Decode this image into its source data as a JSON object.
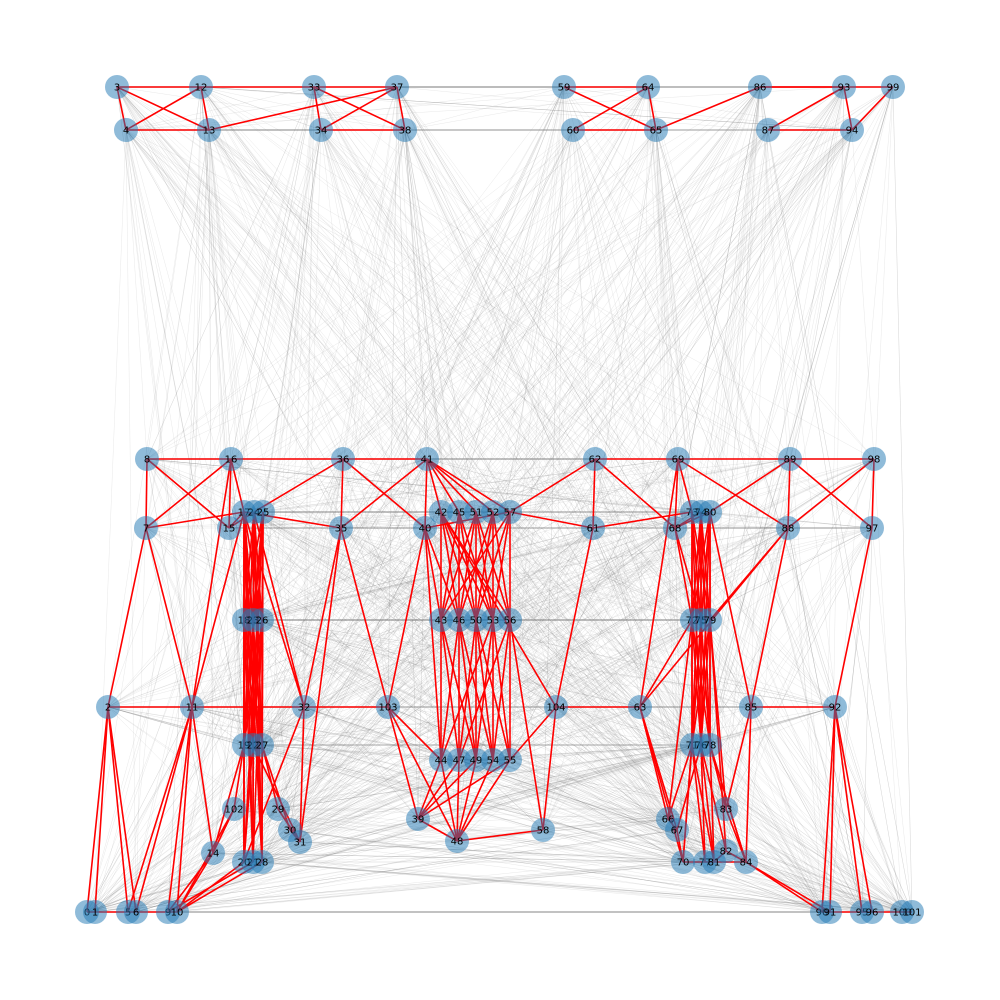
{
  "graph": {
    "node_color": "#1f77b4",
    "red_edge_color": "#ff0000",
    "gray_edge_color": "#808080",
    "nodes": [
      {
        "id": "0",
        "label": "0"
      },
      {
        "id": "1",
        "label": "1"
      },
      {
        "id": "2",
        "label": "2"
      },
      {
        "id": "3",
        "label": "3"
      },
      {
        "id": "4",
        "label": "4"
      },
      {
        "id": "5",
        "label": "5"
      },
      {
        "id": "6",
        "label": "6"
      },
      {
        "id": "7",
        "label": "7"
      },
      {
        "id": "8",
        "label": "8"
      },
      {
        "id": "9",
        "label": "9"
      },
      {
        "id": "10",
        "label": "10"
      },
      {
        "id": "11",
        "label": "11"
      },
      {
        "id": "12",
        "label": "12"
      },
      {
        "id": "13",
        "label": "13"
      },
      {
        "id": "14",
        "label": "14"
      },
      {
        "id": "15",
        "label": "15"
      },
      {
        "id": "16",
        "label": "16"
      },
      {
        "id": "17",
        "label": "17"
      },
      {
        "id": "18",
        "label": "18"
      },
      {
        "id": "19",
        "label": "19"
      },
      {
        "id": "20",
        "label": "20"
      },
      {
        "id": "21",
        "label": "21"
      },
      {
        "id": "22",
        "label": "22"
      },
      {
        "id": "23",
        "label": "23"
      },
      {
        "id": "24",
        "label": "24"
      },
      {
        "id": "25",
        "label": "25"
      },
      {
        "id": "26",
        "label": "26"
      },
      {
        "id": "27",
        "label": "27"
      },
      {
        "id": "28",
        "label": "28"
      },
      {
        "id": "29",
        "label": "29"
      },
      {
        "id": "30",
        "label": "30"
      },
      {
        "id": "31",
        "label": "31"
      },
      {
        "id": "32",
        "label": "32"
      },
      {
        "id": "33",
        "label": "33"
      },
      {
        "id": "34",
        "label": "34"
      },
      {
        "id": "35",
        "label": "35"
      },
      {
        "id": "36",
        "label": "36"
      },
      {
        "id": "37",
        "label": "37"
      },
      {
        "id": "38",
        "label": "38"
      },
      {
        "id": "39",
        "label": "39"
      },
      {
        "id": "40",
        "label": "40"
      },
      {
        "id": "41",
        "label": "41"
      },
      {
        "id": "42",
        "label": "42"
      },
      {
        "id": "43",
        "label": "43"
      },
      {
        "id": "44",
        "label": "44"
      },
      {
        "id": "45",
        "label": "45"
      },
      {
        "id": "46",
        "label": "46"
      },
      {
        "id": "47",
        "label": "47"
      },
      {
        "id": "48",
        "label": "48"
      },
      {
        "id": "49",
        "label": "49"
      },
      {
        "id": "50",
        "label": "50"
      },
      {
        "id": "51",
        "label": "51"
      },
      {
        "id": "52",
        "label": "52"
      },
      {
        "id": "53",
        "label": "53"
      },
      {
        "id": "54",
        "label": "54"
      },
      {
        "id": "55",
        "label": "55"
      },
      {
        "id": "56",
        "label": "56"
      },
      {
        "id": "57",
        "label": "57"
      },
      {
        "id": "58",
        "label": "58"
      },
      {
        "id": "59",
        "label": "59"
      },
      {
        "id": "60",
        "label": "60"
      },
      {
        "id": "61",
        "label": "61"
      },
      {
        "id": "62",
        "label": "62"
      },
      {
        "id": "63",
        "label": "63"
      },
      {
        "id": "64",
        "label": "64"
      },
      {
        "id": "65",
        "label": "65"
      },
      {
        "id": "66",
        "label": "66"
      },
      {
        "id": "67",
        "label": "67"
      },
      {
        "id": "68",
        "label": "68"
      },
      {
        "id": "69",
        "label": "69"
      },
      {
        "id": "70",
        "label": "70"
      },
      {
        "id": "71",
        "label": "71"
      },
      {
        "id": "72",
        "label": "72"
      },
      {
        "id": "73",
        "label": "73"
      },
      {
        "id": "74",
        "label": "74"
      },
      {
        "id": "75",
        "label": "75"
      },
      {
        "id": "76",
        "label": "76"
      },
      {
        "id": "77",
        "label": "77"
      },
      {
        "id": "78",
        "label": "78"
      },
      {
        "id": "79",
        "label": "79"
      },
      {
        "id": "80",
        "label": "80"
      },
      {
        "id": "81",
        "label": "81"
      },
      {
        "id": "82",
        "label": "82"
      },
      {
        "id": "83",
        "label": "83"
      },
      {
        "id": "84",
        "label": "84"
      },
      {
        "id": "85",
        "label": "85"
      },
      {
        "id": "86",
        "label": "86"
      },
      {
        "id": "87",
        "label": "87"
      },
      {
        "id": "88",
        "label": "88"
      },
      {
        "id": "89",
        "label": "89"
      },
      {
        "id": "90",
        "label": "90"
      },
      {
        "id": "91",
        "label": "91"
      },
      {
        "id": "92",
        "label": "92"
      },
      {
        "id": "93",
        "label": "93"
      },
      {
        "id": "94",
        "label": "94"
      },
      {
        "id": "95",
        "label": "95"
      },
      {
        "id": "96",
        "label": "96"
      },
      {
        "id": "97",
        "label": "97"
      },
      {
        "id": "98",
        "label": "98"
      },
      {
        "id": "99",
        "label": "99"
      },
      {
        "id": "100",
        "label": "100"
      },
      {
        "id": "101",
        "label": "101"
      },
      {
        "id": "102",
        "label": "102"
      },
      {
        "id": "103",
        "label": "103"
      },
      {
        "id": "104",
        "label": "104"
      }
    ],
    "red_edges": [
      [
        "3",
        "12"
      ],
      [
        "3",
        "13"
      ],
      [
        "4",
        "12"
      ],
      [
        "4",
        "13"
      ],
      [
        "12",
        "13"
      ],
      [
        "3",
        "4"
      ],
      [
        "12",
        "33"
      ],
      [
        "13",
        "37"
      ],
      [
        "33",
        "37"
      ],
      [
        "33",
        "34"
      ],
      [
        "33",
        "38"
      ],
      [
        "34",
        "37"
      ],
      [
        "37",
        "38"
      ],
      [
        "34",
        "38"
      ],
      [
        "59",
        "64"
      ],
      [
        "59",
        "65"
      ],
      [
        "60",
        "64"
      ],
      [
        "64",
        "65"
      ],
      [
        "60",
        "65"
      ],
      [
        "65",
        "86"
      ],
      [
        "86",
        "93"
      ],
      [
        "86",
        "99"
      ],
      [
        "87",
        "93"
      ],
      [
        "87",
        "94"
      ],
      [
        "93",
        "94"
      ],
      [
        "94",
        "99"
      ],
      [
        "8",
        "16"
      ],
      [
        "8",
        "7"
      ],
      [
        "8",
        "15"
      ],
      [
        "7",
        "16"
      ],
      [
        "7",
        "17"
      ],
      [
        "16",
        "15"
      ],
      [
        "16",
        "17"
      ],
      [
        "16",
        "36"
      ],
      [
        "36",
        "41"
      ],
      [
        "36",
        "35"
      ],
      [
        "36",
        "40"
      ],
      [
        "36",
        "24"
      ],
      [
        "41",
        "40"
      ],
      [
        "41",
        "35"
      ],
      [
        "41",
        "42"
      ],
      [
        "41",
        "45"
      ],
      [
        "41",
        "51"
      ],
      [
        "41",
        "52"
      ],
      [
        "41",
        "57"
      ],
      [
        "62",
        "69"
      ],
      [
        "62",
        "61"
      ],
      [
        "62",
        "57"
      ],
      [
        "62",
        "68"
      ],
      [
        "69",
        "68"
      ],
      [
        "69",
        "73"
      ],
      [
        "69",
        "89"
      ],
      [
        "69",
        "88"
      ],
      [
        "89",
        "98"
      ],
      [
        "89",
        "97"
      ],
      [
        "89",
        "80"
      ],
      [
        "89",
        "88"
      ],
      [
        "98",
        "97"
      ],
      [
        "98",
        "88"
      ],
      [
        "40",
        "57"
      ],
      [
        "57",
        "61"
      ],
      [
        "61",
        "73"
      ],
      [
        "61",
        "104"
      ],
      [
        "97",
        "92"
      ],
      [
        "88",
        "85"
      ],
      [
        "88",
        "79"
      ],
      [
        "88",
        "63"
      ],
      [
        "2",
        "7"
      ],
      [
        "2",
        "11"
      ],
      [
        "2",
        "0"
      ],
      [
        "2",
        "1"
      ],
      [
        "2",
        "5"
      ],
      [
        "2",
        "6"
      ],
      [
        "11",
        "7"
      ],
      [
        "11",
        "16"
      ],
      [
        "11",
        "32"
      ],
      [
        "11",
        "17"
      ],
      [
        "11",
        "14"
      ],
      [
        "11",
        "9"
      ],
      [
        "11",
        "10"
      ],
      [
        "11",
        "5"
      ],
      [
        "11",
        "6"
      ],
      [
        "32",
        "103"
      ],
      [
        "32",
        "17"
      ],
      [
        "32",
        "24"
      ],
      [
        "32",
        "35"
      ],
      [
        "32",
        "31"
      ],
      [
        "32",
        "20"
      ],
      [
        "35",
        "103"
      ],
      [
        "35",
        "31"
      ],
      [
        "35",
        "17"
      ],
      [
        "103",
        "40"
      ],
      [
        "103",
        "44"
      ],
      [
        "103",
        "39"
      ],
      [
        "103",
        "48"
      ],
      [
        "104",
        "63"
      ],
      [
        "104",
        "42"
      ],
      [
        "104",
        "55"
      ],
      [
        "104",
        "58"
      ],
      [
        "63",
        "66"
      ],
      [
        "63",
        "67"
      ],
      [
        "63",
        "70"
      ],
      [
        "63",
        "72"
      ],
      [
        "63",
        "69"
      ],
      [
        "85",
        "92"
      ],
      [
        "85",
        "84"
      ],
      [
        "85",
        "80"
      ],
      [
        "85",
        "83"
      ],
      [
        "92",
        "90"
      ],
      [
        "92",
        "91"
      ],
      [
        "92",
        "95"
      ],
      [
        "92",
        "96"
      ],
      [
        "0",
        "1"
      ],
      [
        "1",
        "5"
      ],
      [
        "5",
        "6"
      ],
      [
        "6",
        "9"
      ],
      [
        "9",
        "10"
      ],
      [
        "90",
        "91"
      ],
      [
        "91",
        "95"
      ],
      [
        "95",
        "96"
      ],
      [
        "96",
        "100"
      ],
      [
        "100",
        "101"
      ],
      [
        "84",
        "90"
      ],
      [
        "84",
        "91"
      ],
      [
        "84",
        "78"
      ],
      [
        "84",
        "81"
      ],
      [
        "17",
        "18"
      ],
      [
        "17",
        "19"
      ],
      [
        "17",
        "20"
      ],
      [
        "17",
        "21"
      ],
      [
        "17",
        "22"
      ],
      [
        "17",
        "23"
      ],
      [
        "17",
        "26"
      ],
      [
        "17",
        "27"
      ],
      [
        "17",
        "28"
      ],
      [
        "24",
        "18"
      ],
      [
        "24",
        "19"
      ],
      [
        "24",
        "21"
      ],
      [
        "24",
        "22"
      ],
      [
        "24",
        "23"
      ],
      [
        "24",
        "26"
      ],
      [
        "24",
        "27"
      ],
      [
        "24",
        "28"
      ],
      [
        "25",
        "18"
      ],
      [
        "25",
        "19"
      ],
      [
        "25",
        "20"
      ],
      [
        "25",
        "22"
      ],
      [
        "25",
        "23"
      ],
      [
        "25",
        "26"
      ],
      [
        "25",
        "27"
      ],
      [
        "25",
        "28"
      ],
      [
        "18",
        "19"
      ],
      [
        "18",
        "22"
      ],
      [
        "18",
        "27"
      ],
      [
        "18",
        "20"
      ],
      [
        "18",
        "21"
      ],
      [
        "23",
        "19"
      ],
      [
        "23",
        "22"
      ],
      [
        "23",
        "27"
      ],
      [
        "23",
        "28"
      ],
      [
        "26",
        "19"
      ],
      [
        "26",
        "22"
      ],
      [
        "26",
        "27"
      ],
      [
        "26",
        "21"
      ],
      [
        "26",
        "20"
      ],
      [
        "19",
        "102"
      ],
      [
        "19",
        "20"
      ],
      [
        "22",
        "21"
      ],
      [
        "27",
        "28"
      ],
      [
        "27",
        "29"
      ],
      [
        "27",
        "30"
      ],
      [
        "22",
        "31"
      ],
      [
        "19",
        "14"
      ],
      [
        "102",
        "14"
      ],
      [
        "29",
        "31"
      ],
      [
        "30",
        "31"
      ],
      [
        "14",
        "10"
      ],
      [
        "14",
        "9"
      ],
      [
        "20",
        "10"
      ],
      [
        "21",
        "9"
      ],
      [
        "28",
        "10"
      ],
      [
        "102",
        "10"
      ],
      [
        "15",
        "17"
      ],
      [
        "15",
        "24"
      ],
      [
        "42",
        "43"
      ],
      [
        "42",
        "46"
      ],
      [
        "42",
        "50"
      ],
      [
        "42",
        "53"
      ],
      [
        "42",
        "56"
      ],
      [
        "45",
        "43"
      ],
      [
        "45",
        "46"
      ],
      [
        "45",
        "50"
      ],
      [
        "45",
        "53"
      ],
      [
        "51",
        "43"
      ],
      [
        "51",
        "46"
      ],
      [
        "51",
        "50"
      ],
      [
        "51",
        "53"
      ],
      [
        "51",
        "56"
      ],
      [
        "52",
        "46"
      ],
      [
        "52",
        "50"
      ],
      [
        "52",
        "53"
      ],
      [
        "52",
        "56"
      ],
      [
        "57",
        "43"
      ],
      [
        "57",
        "50"
      ],
      [
        "57",
        "53"
      ],
      [
        "57",
        "56"
      ],
      [
        "40",
        "43"
      ],
      [
        "40",
        "46"
      ],
      [
        "40",
        "44"
      ],
      [
        "43",
        "44"
      ],
      [
        "43",
        "47"
      ],
      [
        "43",
        "49"
      ],
      [
        "46",
        "44"
      ],
      [
        "46",
        "47"
      ],
      [
        "46",
        "49"
      ],
      [
        "46",
        "54"
      ],
      [
        "50",
        "47"
      ],
      [
        "50",
        "49"
      ],
      [
        "50",
        "54"
      ],
      [
        "50",
        "55"
      ],
      [
        "53",
        "49"
      ],
      [
        "53",
        "54"
      ],
      [
        "53",
        "55"
      ],
      [
        "53",
        "44"
      ],
      [
        "56",
        "54"
      ],
      [
        "56",
        "55"
      ],
      [
        "56",
        "47"
      ],
      [
        "44",
        "39"
      ],
      [
        "47",
        "39"
      ],
      [
        "49",
        "48"
      ],
      [
        "54",
        "48"
      ],
      [
        "55",
        "48"
      ],
      [
        "44",
        "48"
      ],
      [
        "47",
        "48"
      ],
      [
        "49",
        "39"
      ],
      [
        "55",
        "39"
      ],
      [
        "48",
        "58"
      ],
      [
        "39",
        "48"
      ],
      [
        "56",
        "58"
      ],
      [
        "73",
        "72"
      ],
      [
        "73",
        "75"
      ],
      [
        "73",
        "79"
      ],
      [
        "73",
        "71"
      ],
      [
        "73",
        "76"
      ],
      [
        "73",
        "78"
      ],
      [
        "74",
        "72"
      ],
      [
        "74",
        "75"
      ],
      [
        "74",
        "79"
      ],
      [
        "74",
        "71"
      ],
      [
        "74",
        "76"
      ],
      [
        "74",
        "78"
      ],
      [
        "80",
        "72"
      ],
      [
        "80",
        "75"
      ],
      [
        "80",
        "79"
      ],
      [
        "80",
        "71"
      ],
      [
        "80",
        "76"
      ],
      [
        "80",
        "78"
      ],
      [
        "68",
        "72"
      ],
      [
        "68",
        "75"
      ],
      [
        "72",
        "71"
      ],
      [
        "72",
        "76"
      ],
      [
        "72",
        "78"
      ],
      [
        "75",
        "71"
      ],
      [
        "75",
        "76"
      ],
      [
        "75",
        "78"
      ],
      [
        "79",
        "71"
      ],
      [
        "79",
        "76"
      ],
      [
        "79",
        "78"
      ],
      [
        "71",
        "70"
      ],
      [
        "71",
        "77"
      ],
      [
        "71",
        "81"
      ],
      [
        "76",
        "77"
      ],
      [
        "76",
        "81"
      ],
      [
        "76",
        "82"
      ],
      [
        "78",
        "81"
      ],
      [
        "78",
        "83"
      ],
      [
        "78",
        "84"
      ],
      [
        "71",
        "66"
      ],
      [
        "76",
        "67"
      ],
      [
        "70",
        "77"
      ],
      [
        "77",
        "81"
      ],
      [
        "81",
        "82"
      ],
      [
        "82",
        "84"
      ],
      [
        "83",
        "84"
      ],
      [
        "66",
        "67"
      ],
      [
        "67",
        "70"
      ],
      [
        "68",
        "74"
      ],
      [
        "68",
        "80"
      ],
      [
        "72",
        "66"
      ],
      [
        "75",
        "70"
      ],
      [
        "79",
        "82"
      ],
      [
        "79",
        "83"
      ]
    ]
  }
}
